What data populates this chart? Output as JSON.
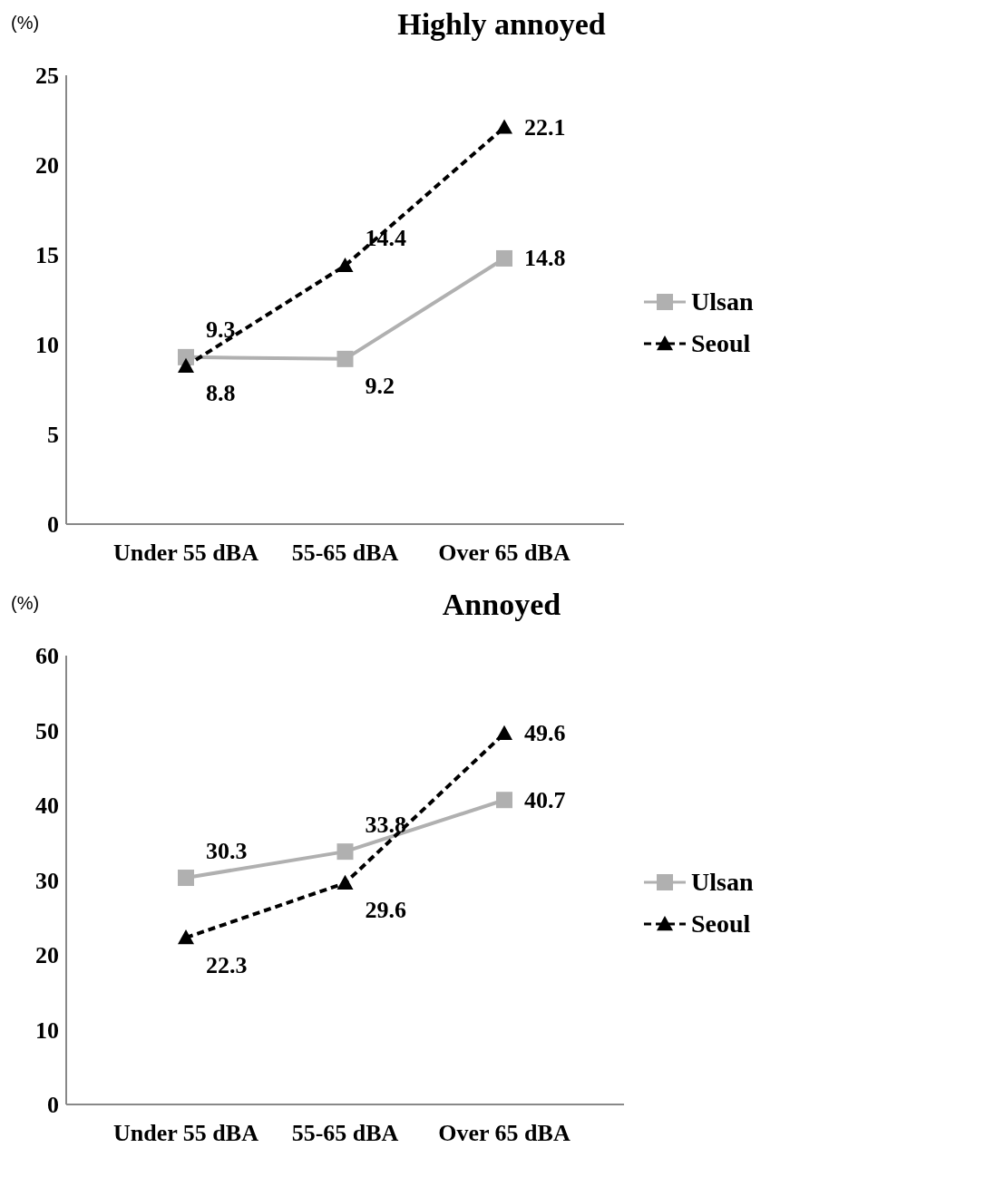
{
  "chart_data": [
    {
      "type": "line",
      "title": "Highly annoyed",
      "ylabel": "(%)",
      "categories": [
        "Under 55 dBA",
        "55-65 dBA",
        "Over 65 dBA"
      ],
      "ylim": [
        0,
        25
      ],
      "yticks": [
        0,
        5,
        10,
        15,
        20,
        25
      ],
      "grid": false,
      "legend": "right",
      "data_labels": true,
      "series": [
        {
          "name": "Ulsan",
          "color": "#b0b0b0",
          "values": [
            9.3,
            9.2,
            14.8
          ],
          "marker": "square",
          "line_style": "solid"
        },
        {
          "name": "Seoul",
          "color": "#000000",
          "values": [
            8.8,
            14.4,
            22.1
          ],
          "marker": "triangle",
          "line_style": "dashed"
        }
      ]
    },
    {
      "type": "line",
      "title": "Annoyed",
      "ylabel": "(%)",
      "categories": [
        "Under 55 dBA",
        "55-65 dBA",
        "Over 65 dBA"
      ],
      "ylim": [
        0,
        60
      ],
      "yticks": [
        0,
        10,
        20,
        30,
        40,
        50,
        60
      ],
      "grid": false,
      "legend": "right",
      "data_labels": true,
      "series": [
        {
          "name": "Ulsan",
          "color": "#b0b0b0",
          "values": [
            30.3,
            33.8,
            40.7
          ],
          "marker": "square",
          "line_style": "solid"
        },
        {
          "name": "Seoul",
          "color": "#000000",
          "values": [
            22.3,
            29.6,
            49.6
          ],
          "marker": "triangle",
          "line_style": "dashed"
        }
      ]
    }
  ]
}
